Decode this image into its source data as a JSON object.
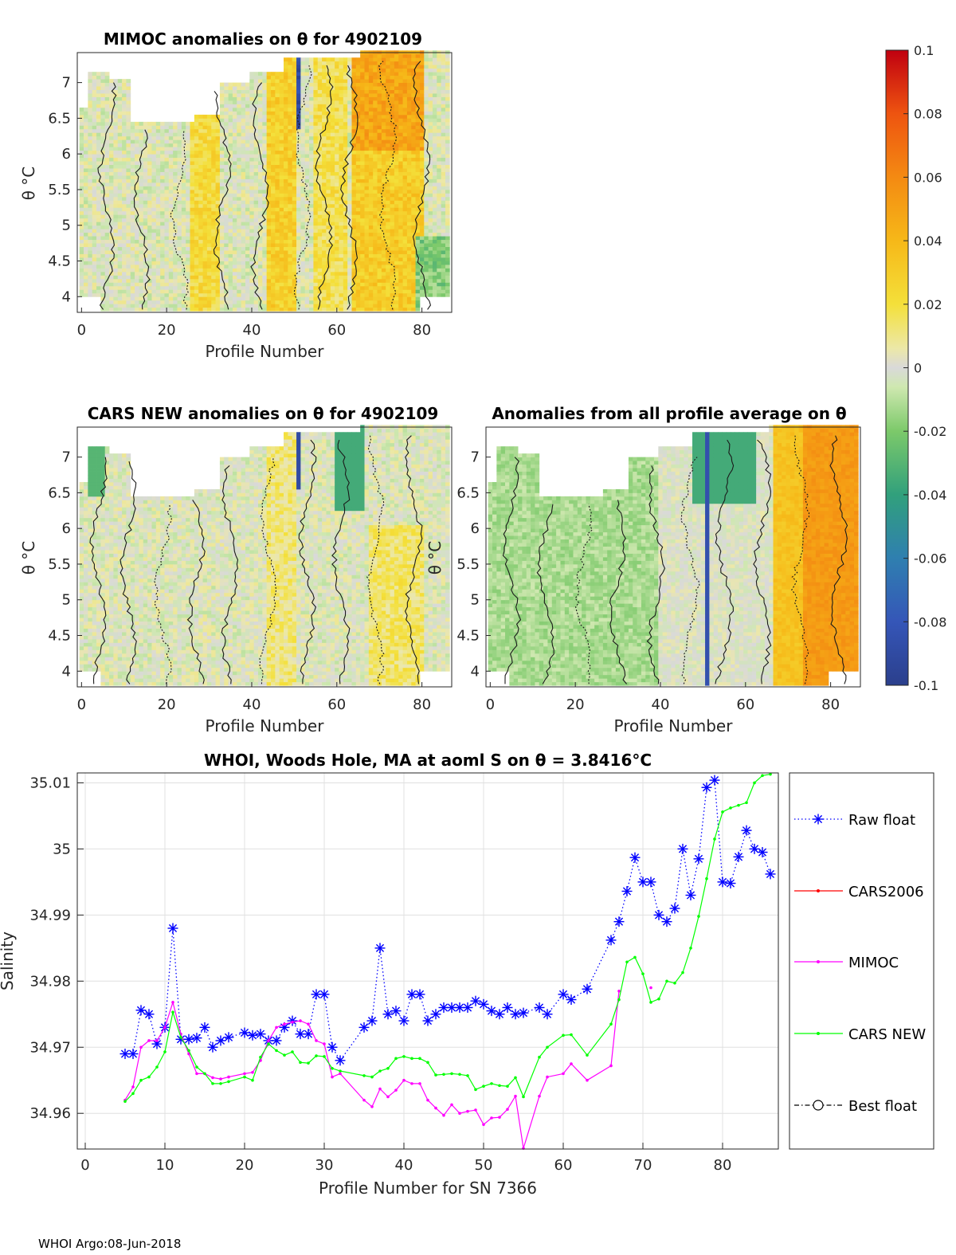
{
  "footer": "WHOI Argo:08-Jun-2018",
  "colorbar": {
    "ticks": [
      "0.1",
      "0.08",
      "0.06",
      "0.04",
      "0.02",
      "0",
      "-0.02",
      "-0.04",
      "-0.06",
      "-0.08",
      "-0.1"
    ],
    "range": [
      -0.1,
      0.1
    ]
  },
  "chart_data": [
    {
      "type": "heatmap",
      "title": "MIMOC anomalies on θ  for 4902109",
      "xlabel": "Profile Number",
      "ylabel": "θ °C",
      "xticks": [
        "0",
        "20",
        "40",
        "60",
        "80"
      ],
      "yticks": [
        "4",
        "4.5",
        "5",
        "5.5",
        "6",
        "6.5",
        "7"
      ],
      "xlim": [
        -1,
        87
      ],
      "ylim": [
        3.78,
        7.42
      ]
    },
    {
      "type": "heatmap",
      "title": "CARS NEW anomalies on θ for 4902109",
      "xlabel": "Profile Number",
      "ylabel": "θ °C",
      "xticks": [
        "0",
        "20",
        "40",
        "60",
        "80"
      ],
      "yticks": [
        "4",
        "4.5",
        "5",
        "5.5",
        "6",
        "6.5",
        "7"
      ],
      "xlim": [
        -1,
        87
      ],
      "ylim": [
        3.78,
        7.42
      ]
    },
    {
      "type": "heatmap",
      "title": "Anomalies from all profile average on θ",
      "xlabel": "Profile Number",
      "ylabel": "θ °C",
      "xticks": [
        "0",
        "20",
        "40",
        "60",
        "80"
      ],
      "yticks": [
        "4",
        "4.5",
        "5",
        "5.5",
        "6",
        "6.5",
        "7"
      ],
      "xlim": [
        -1,
        87
      ],
      "ylim": [
        3.78,
        7.42
      ]
    },
    {
      "type": "line",
      "title": "WHOI, Woods Hole, MA at aoml S on θ = 3.8416°C",
      "xlabel": "Profile Number for SN 7366",
      "ylabel": "Salinity",
      "xlim": [
        -1,
        87
      ],
      "ylim": [
        34.9546,
        35.0115
      ],
      "xticks": [
        "0",
        "10",
        "20",
        "30",
        "40",
        "50",
        "60",
        "70",
        "80"
      ],
      "yticks": [
        "34.96",
        "34.97",
        "34.98",
        "34.99",
        "35",
        "35.01"
      ],
      "legend_position": "outside-right",
      "series": [
        {
          "name": "Raw float",
          "color": "#0000ff",
          "marker": "asterisk",
          "style": "dotted",
          "x": [
            5,
            6,
            7,
            8,
            9,
            10,
            11,
            12,
            13,
            14,
            15,
            16,
            17,
            18,
            20,
            21,
            22,
            23,
            24,
            25,
            26,
            27,
            28,
            29,
            30,
            31,
            32,
            35,
            36,
            37,
            38,
            39,
            40,
            41,
            42,
            43,
            44,
            45,
            46,
            47,
            48,
            49,
            50,
            51,
            52,
            53,
            54,
            55,
            57,
            58,
            60,
            61,
            63,
            66,
            67,
            68,
            69,
            70,
            71,
            72,
            73,
            74,
            75,
            76,
            77,
            78,
            79,
            80,
            81,
            82,
            83,
            84,
            85,
            86
          ],
          "y": [
            34.969,
            34.969,
            34.9756,
            34.975,
            34.9705,
            34.973,
            34.988,
            34.9712,
            34.9712,
            34.9714,
            34.973,
            34.97,
            34.971,
            34.9715,
            34.9722,
            34.9718,
            34.972,
            34.971,
            34.971,
            34.973,
            34.974,
            34.972,
            34.972,
            34.978,
            34.978,
            34.97,
            34.968,
            34.973,
            34.974,
            34.985,
            34.975,
            34.9755,
            34.974,
            34.978,
            34.978,
            34.974,
            34.975,
            34.976,
            34.976,
            34.976,
            34.976,
            34.977,
            34.9765,
            34.9755,
            34.975,
            34.976,
            34.975,
            34.9752,
            34.976,
            34.975,
            34.978,
            34.9772,
            34.9788,
            34.9862,
            34.989,
            34.9936,
            34.9987,
            34.995,
            34.995,
            34.99,
            34.989,
            34.991,
            35.0,
            34.993,
            34.9985,
            35.0093,
            35.0104,
            34.995,
            34.9948,
            34.9988,
            35.0028,
            35.0,
            34.9995,
            34.9962
          ]
        },
        {
          "name": "CARS2006",
          "color": "#ff0000",
          "marker": "dot",
          "style": "solid",
          "x": [],
          "y": []
        },
        {
          "name": "MIMOC",
          "color": "#ff00ff",
          "marker": "dot",
          "style": "solid",
          "x": [
            5,
            6,
            7,
            8,
            9,
            10,
            11,
            12,
            13,
            14,
            15,
            16,
            17,
            18,
            20,
            21,
            22,
            23,
            24,
            25,
            26,
            27,
            28,
            29,
            30,
            31,
            32,
            35,
            36,
            37,
            38,
            39,
            40,
            41,
            42,
            43,
            44,
            45,
            46,
            47,
            48,
            49,
            50,
            51,
            52,
            53,
            54,
            55,
            57,
            58,
            60,
            61,
            63,
            66,
            67,
            null,
            71
          ],
          "y": [
            34.962,
            34.964,
            34.97,
            34.971,
            34.971,
            34.973,
            34.9768,
            34.972,
            34.969,
            34.966,
            34.966,
            34.9654,
            34.9652,
            34.9655,
            34.966,
            34.9662,
            34.968,
            34.971,
            34.973,
            34.9735,
            34.9738,
            34.974,
            34.9735,
            34.971,
            34.9705,
            34.9655,
            34.966,
            34.962,
            34.961,
            34.9637,
            34.9625,
            34.9635,
            34.965,
            34.9645,
            34.9645,
            34.962,
            34.9608,
            34.9597,
            34.9613,
            34.96,
            34.9603,
            34.9605,
            34.9583,
            34.9593,
            34.9594,
            34.9606,
            34.9626,
            34.9547,
            34.9626,
            34.9655,
            34.966,
            34.9675,
            34.965,
            34.9672,
            34.9785,
            null,
            34.979
          ]
        },
        {
          "name": "CARS NEW",
          "color": "#00ff00",
          "marker": "dot",
          "style": "solid",
          "x": [
            5,
            6,
            7,
            8,
            9,
            10,
            11,
            12,
            13,
            14,
            15,
            16,
            17,
            18,
            20,
            21,
            22,
            23,
            24,
            25,
            26,
            27,
            28,
            29,
            30,
            31,
            32,
            35,
            36,
            37,
            38,
            39,
            40,
            41,
            42,
            43,
            44,
            45,
            46,
            47,
            48,
            49,
            50,
            51,
            52,
            53,
            54,
            55,
            57,
            58,
            60,
            61,
            63,
            66,
            67,
            68,
            69,
            70,
            71,
            72,
            73,
            74,
            75,
            76,
            77,
            78,
            79,
            80,
            81,
            82,
            83,
            84,
            85,
            86
          ],
          "y": [
            34.9618,
            34.963,
            34.965,
            34.9655,
            34.967,
            34.9693,
            34.9753,
            34.9715,
            34.9695,
            34.967,
            34.966,
            34.9645,
            34.9645,
            34.9648,
            34.9655,
            34.965,
            34.9685,
            34.9705,
            34.9695,
            34.9688,
            34.9693,
            34.9677,
            34.9676,
            34.9687,
            34.9686,
            34.9668,
            34.9664,
            34.9657,
            34.9655,
            34.9664,
            34.9668,
            34.9683,
            34.9686,
            34.9683,
            34.9683,
            34.9677,
            34.9658,
            34.9659,
            34.966,
            34.9659,
            34.9657,
            34.9636,
            34.9641,
            34.9645,
            34.9642,
            34.9641,
            34.9654,
            34.9625,
            34.9685,
            34.97,
            34.9718,
            34.9719,
            34.9688,
            34.9735,
            34.9772,
            34.9829,
            34.9836,
            34.9811,
            34.9768,
            34.9773,
            34.98,
            34.9797,
            34.9813,
            34.985,
            34.9898,
            34.9955,
            35.0015,
            35.0056,
            35.0062,
            35.0066,
            35.007,
            35.01,
            35.0111,
            35.0113
          ]
        },
        {
          "name": "Best float",
          "color": "#000000",
          "marker": "circle",
          "style": "dashdot",
          "x": [],
          "y": []
        }
      ]
    }
  ]
}
